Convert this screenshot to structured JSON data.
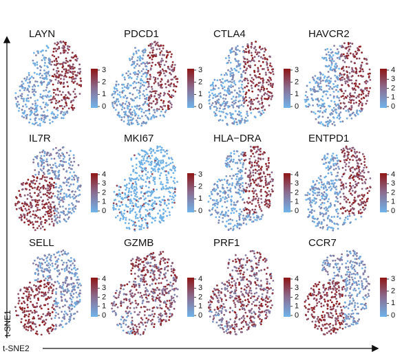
{
  "x_label": "t-SNE2",
  "y_label": "t-SNE1",
  "panels": [
    {
      "title": "LAYN",
      "ticks": [
        0,
        1,
        2,
        3
      ]
    },
    {
      "title": "PDCD1",
      "ticks": [
        0,
        1,
        2,
        3
      ]
    },
    {
      "title": "CTLA4",
      "ticks": [
        0,
        1,
        2,
        3
      ]
    },
    {
      "title": "HAVCR2",
      "ticks": [
        0,
        1,
        2,
        3,
        4
      ]
    },
    {
      "title": "IL7R",
      "ticks": [
        0,
        1,
        2,
        3,
        4
      ]
    },
    {
      "title": "MKI67",
      "ticks": [
        0,
        1,
        2,
        3
      ]
    },
    {
      "title": "HLA−DRA",
      "ticks": [
        0,
        1,
        2,
        3,
        4
      ]
    },
    {
      "title": "ENTPD1",
      "ticks": [
        0,
        1,
        2,
        3,
        4
      ]
    },
    {
      "title": "SELL",
      "ticks": [
        0,
        1,
        2,
        3,
        4
      ]
    },
    {
      "title": "GZMB",
      "ticks": [
        0,
        1,
        2,
        3,
        4
      ]
    },
    {
      "title": "PRF1",
      "ticks": [
        0,
        1,
        2,
        3,
        4
      ]
    },
    {
      "title": "CCR7",
      "ticks": [
        0,
        1,
        2,
        3
      ]
    }
  ]
}
